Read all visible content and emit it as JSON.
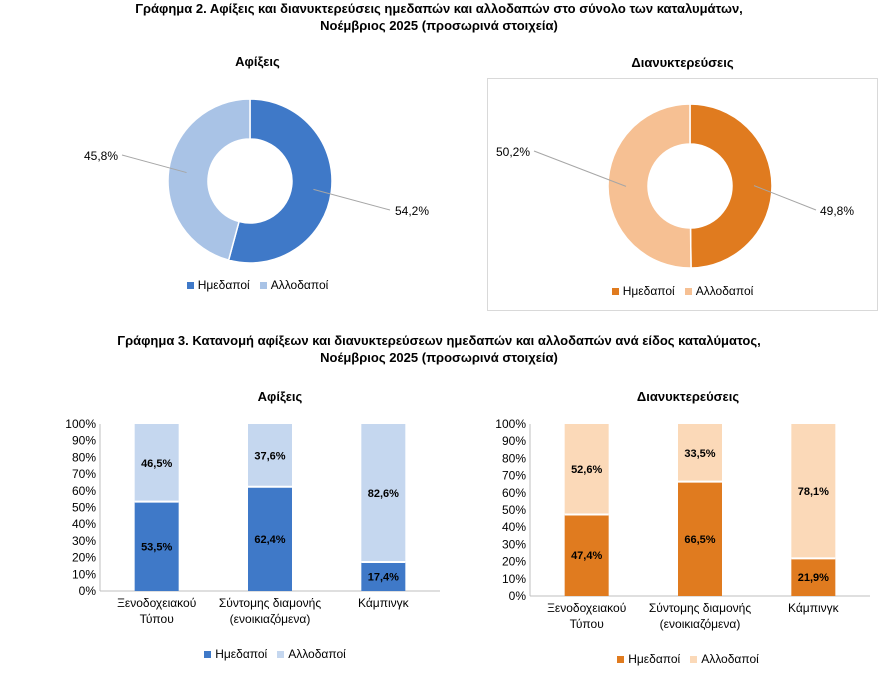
{
  "figure2": {
    "title_line1": "Γράφημα 2. Αφίξεις και διανυκτερεύσεις ημεδαπών και αλλοδαπών στο σύνολο των καταλυμάτων,",
    "title_line2": "Νοέμβριος 2025  (προσωρινά στοιχεία)"
  },
  "figure3": {
    "title_line1": "Γράφημα 3. Κατανομή αφίξεων και διανυκτερεύσεων ημεδαπών και αλλοδαπών ανά είδος καταλύματος,",
    "title_line2": "Νοέμβριος 2025 (προσωρινά στοιχεία)"
  },
  "legend_labels": {
    "domestic": "Ημεδαποί",
    "foreign": "Αλλοδαποί"
  },
  "colors": {
    "blue_domestic": "#3f79c8",
    "blue_foreign": "#a9c3e6",
    "orange_domestic": "#e07b1f",
    "orange_foreign": "#f6c093"
  },
  "chart_data": [
    {
      "type": "pie",
      "variant": "donut",
      "title": "Αφίξεις",
      "series": [
        {
          "name": "Ημεδαποί",
          "value": 54.2,
          "label": "54,2%",
          "color": "#3f79c8"
        },
        {
          "name": "Αλλοδαποί",
          "value": 45.8,
          "label": "45,8%",
          "color": "#a9c3e6"
        }
      ],
      "legend": "bottom"
    },
    {
      "type": "pie",
      "variant": "donut",
      "title": "Διανυκτερεύσεις",
      "series": [
        {
          "name": "Ημεδαποί",
          "value": 49.8,
          "label": "49,8%",
          "color": "#e07b1f"
        },
        {
          "name": "Αλλοδαποί",
          "value": 50.2,
          "label": "50,2%",
          "color": "#f6c093"
        }
      ],
      "legend": "bottom"
    },
    {
      "type": "bar",
      "stacked": true,
      "title": "Αφίξεις",
      "categories": [
        [
          "Ξενοδοχειακού",
          "Τύπου"
        ],
        [
          "Σύντομης διαμονής",
          "(ενοικιαζόμενα)"
        ],
        [
          "Κάμπινγκ"
        ]
      ],
      "series": [
        {
          "name": "Ημεδαποί",
          "values": [
            53.5,
            62.4,
            17.4
          ],
          "labels": [
            "53,5%",
            "62,4%",
            "17,4%"
          ],
          "color": "#3f79c8"
        },
        {
          "name": "Αλλοδαποί",
          "values": [
            46.5,
            37.6,
            82.6
          ],
          "labels": [
            "46,5%",
            "37,6%",
            "82,6%"
          ],
          "color": "#c5d7ef"
        }
      ],
      "ylim": [
        0,
        100
      ],
      "yticks": [
        "0%",
        "10%",
        "20%",
        "30%",
        "40%",
        "50%",
        "60%",
        "70%",
        "80%",
        "90%",
        "100%"
      ],
      "legend": "bottom"
    },
    {
      "type": "bar",
      "stacked": true,
      "title": "Διανυκτερεύσεις",
      "categories": [
        [
          "Ξενοδοχειακού",
          "Τύπου"
        ],
        [
          "Σύντομης διαμονής",
          "(ενοικιαζόμενα)"
        ],
        [
          "Κάμπινγκ"
        ]
      ],
      "series": [
        {
          "name": "Ημεδαποί",
          "values": [
            47.4,
            66.5,
            21.9
          ],
          "labels": [
            "47,4%",
            "66,5%",
            "21,9%"
          ],
          "color": "#e07b1f"
        },
        {
          "name": "Αλλοδαποί",
          "values": [
            52.6,
            33.5,
            78.1
          ],
          "labels": [
            "52,6%",
            "33,5%",
            "78,1%"
          ],
          "color": "#fbd9b8"
        }
      ],
      "ylim": [
        0,
        100
      ],
      "yticks": [
        "0%",
        "10%",
        "20%",
        "30%",
        "40%",
        "50%",
        "60%",
        "70%",
        "80%",
        "90%",
        "100%"
      ],
      "legend": "bottom"
    }
  ]
}
